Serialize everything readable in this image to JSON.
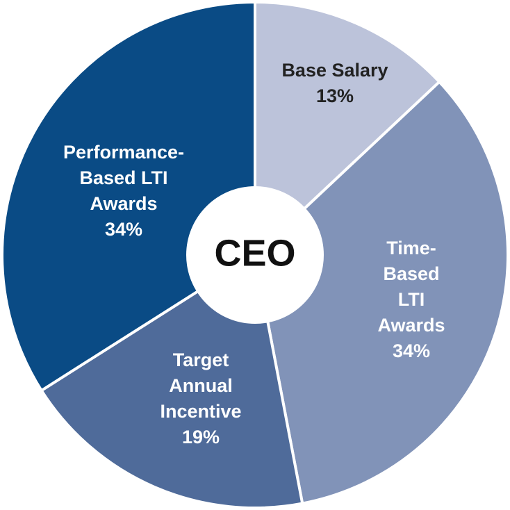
{
  "chart_data": {
    "type": "pie",
    "style": "donut",
    "center_label": "CEO",
    "slices": [
      {
        "name": "base-salary",
        "label_lines": [
          "Base Salary",
          "13%"
        ],
        "value": 13,
        "color": "#bcc3da",
        "text_color": "#222222"
      },
      {
        "name": "time-based-lti-awards",
        "label_lines": [
          "Time-",
          "Based",
          "LTI",
          "Awards",
          "34%"
        ],
        "value": 34,
        "color": "#8193b8",
        "text_color": "#ffffff"
      },
      {
        "name": "target-annual-incentive",
        "label_lines": [
          "Target",
          "Annual",
          "Incentive",
          "19%"
        ],
        "value": 19,
        "color": "#4f6b9a",
        "text_color": "#ffffff"
      },
      {
        "name": "performance-based-lti-awards",
        "label_lines": [
          "Performance-",
          "Based LTI",
          "Awards",
          "34%"
        ],
        "value": 34,
        "color": "#0a4b85",
        "text_color": "#ffffff"
      }
    ]
  }
}
